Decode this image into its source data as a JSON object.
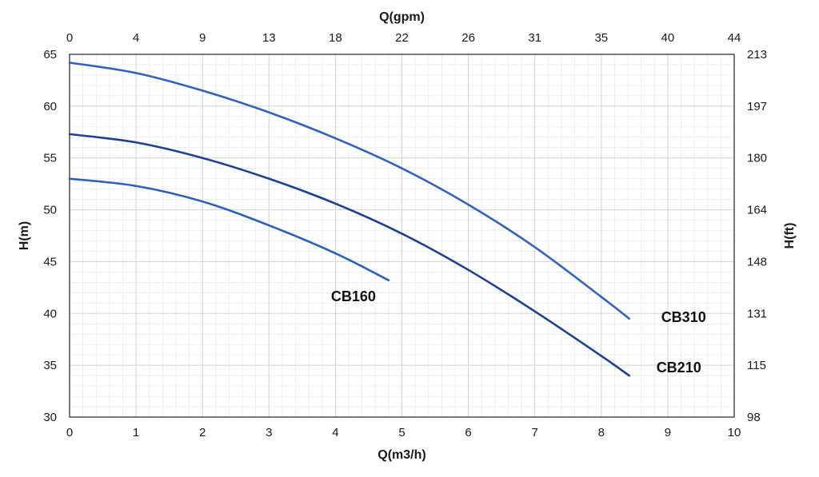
{
  "chart_data": {
    "type": "line",
    "title": "",
    "xlabel": "Q(m3/h)",
    "ylabel": "H(m)",
    "x2label": "Q(gpm)",
    "y2label": "H(ft)",
    "xlim": [
      0,
      10
    ],
    "ylim": [
      30,
      65
    ],
    "xticks": [
      "0",
      "1",
      "2",
      "3",
      "4",
      "5",
      "6",
      "7",
      "8",
      "9",
      "10"
    ],
    "yticks": [
      "30",
      "35",
      "40",
      "45",
      "50",
      "55",
      "60",
      "65"
    ],
    "x2ticks": [
      "0",
      "4",
      "9",
      "13",
      "18",
      "22",
      "26",
      "31",
      "35",
      "40",
      "44"
    ],
    "y2ticks": [
      "98",
      "115",
      "131",
      "148",
      "164",
      "180",
      "197",
      "213"
    ],
    "grid": true,
    "series": [
      {
        "name": "CB160",
        "color": "#2f5fb3",
        "x": [
          0,
          1,
          2,
          3,
          4,
          4.8
        ],
        "y": [
          53.0,
          52.3,
          50.8,
          48.5,
          45.8,
          43.2
        ]
      },
      {
        "name": "CB210",
        "color": "#1f3f8f",
        "x": [
          0,
          1,
          2,
          3,
          4,
          5,
          6,
          7,
          8,
          8.42
        ],
        "y": [
          57.3,
          56.5,
          55.0,
          53.0,
          50.6,
          47.7,
          44.2,
          40.2,
          35.9,
          34.0
        ]
      },
      {
        "name": "CB310",
        "color": "#3462b8",
        "x": [
          0,
          1,
          2,
          3,
          4,
          5,
          6,
          7,
          8,
          8.42
        ],
        "y": [
          64.2,
          63.2,
          61.5,
          59.4,
          56.9,
          54.0,
          50.5,
          46.4,
          41.6,
          39.5
        ]
      }
    ]
  }
}
